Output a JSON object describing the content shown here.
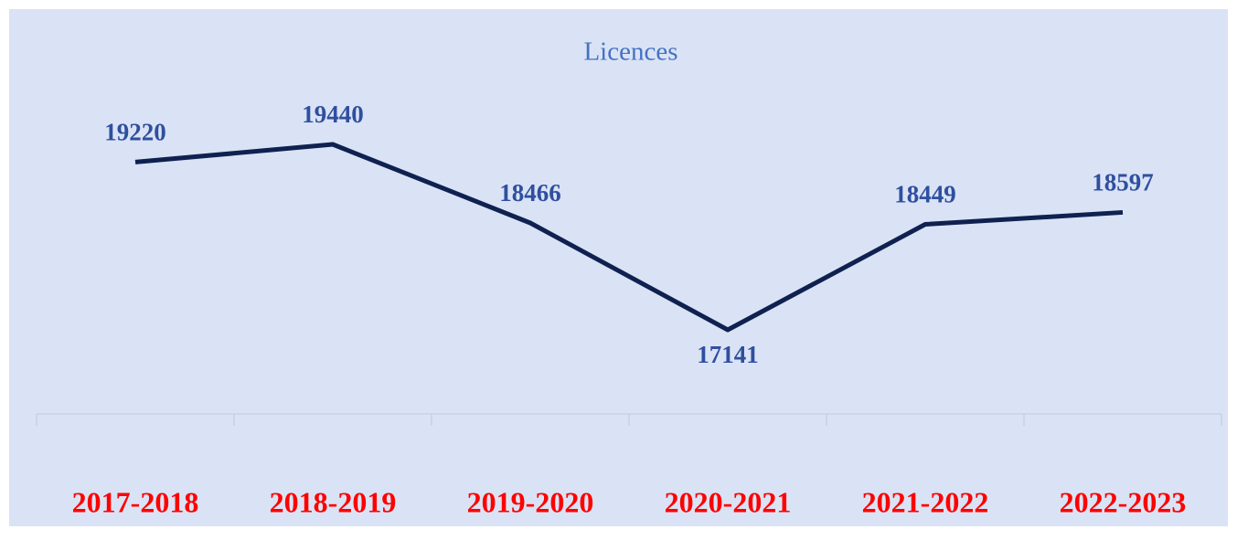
{
  "chart_data": {
    "type": "line",
    "title": "Licences",
    "categories": [
      "2017-2018",
      "2018-2019",
      "2019-2020",
      "2020-2021",
      "2021-2022",
      "2022-2023"
    ],
    "series": [
      {
        "name": "Licences",
        "color": "#0f2150",
        "values": [
          19220,
          19440,
          18466,
          17141,
          18449,
          18597
        ]
      }
    ]
  }
}
